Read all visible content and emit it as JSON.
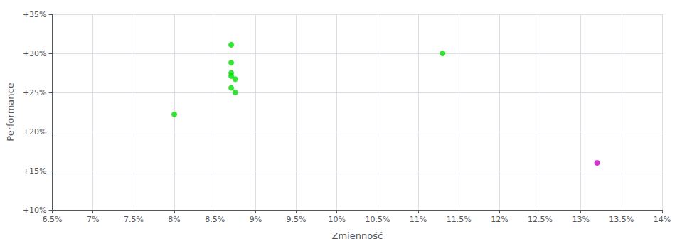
{
  "chart_data": {
    "type": "scatter",
    "xlabel": "Zmienność",
    "ylabel": "Performance",
    "series": [
      {
        "color": "#00dd00",
        "x": [
          0.087,
          0.087,
          0.087,
          0.087,
          0.0875,
          0.087,
          0.0875,
          0.08,
          0.113
        ],
        "values": [
          0.311,
          0.288,
          0.275,
          0.271,
          0.267,
          0.256,
          0.25,
          0.222,
          0.3
        ]
      },
      {
        "color": "#cc00cc",
        "x": [
          0.132
        ],
        "values": [
          0.16
        ]
      }
    ],
    "xlim": [
      0.065,
      0.14
    ],
    "ylim": [
      0.1,
      0.35
    ],
    "xticks": [
      {
        "value": 0.065,
        "label": "6.5%"
      },
      {
        "value": 0.07,
        "label": "7%"
      },
      {
        "value": 0.075,
        "label": "7.5%"
      },
      {
        "value": 0.08,
        "label": "8%"
      },
      {
        "value": 0.085,
        "label": "8.5%"
      },
      {
        "value": 0.09,
        "label": "9%"
      },
      {
        "value": 0.095,
        "label": "9.5%"
      },
      {
        "value": 0.1,
        "label": "10%"
      },
      {
        "value": 0.105,
        "label": "10.5%"
      },
      {
        "value": 0.11,
        "label": "11%"
      },
      {
        "value": 0.115,
        "label": "11.5%"
      },
      {
        "value": 0.12,
        "label": "12%"
      },
      {
        "value": 0.125,
        "label": "12.5%"
      },
      {
        "value": 0.13,
        "label": "13%"
      },
      {
        "value": 0.135,
        "label": "13.5%"
      },
      {
        "value": 0.14,
        "label": "14%"
      }
    ],
    "yticks": [
      {
        "value": 0.1,
        "label": "+10%"
      },
      {
        "value": 0.15,
        "label": "+15%"
      },
      {
        "value": 0.2,
        "label": "+20%"
      },
      {
        "value": 0.25,
        "label": "+25%"
      },
      {
        "value": 0.3,
        "label": "+30%"
      },
      {
        "value": 0.35,
        "label": "+35%"
      }
    ],
    "grid": true
  }
}
